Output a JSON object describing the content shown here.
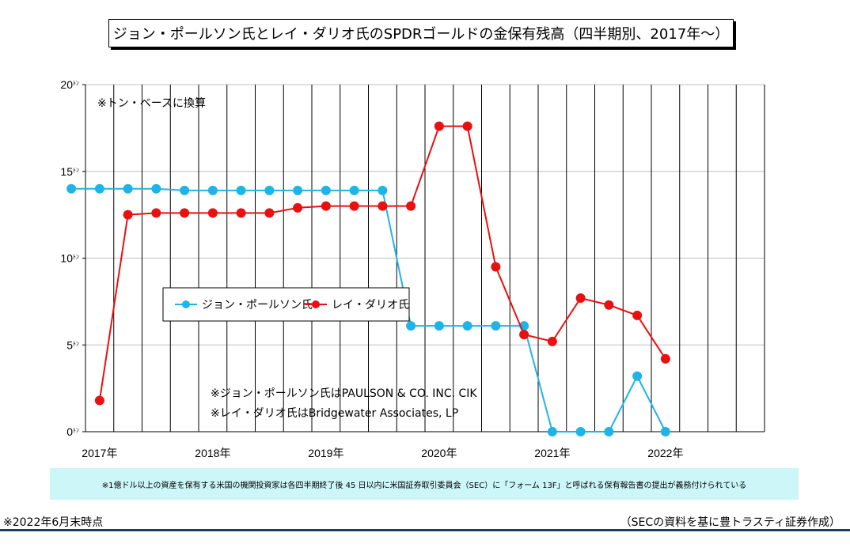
{
  "chart_data": {
    "type": "line",
    "title": "ジョン・ポールソン氏とレイ・ダリオ氏のSPDRゴールドの金保有残高（四半期別、2017年～）",
    "ylim": [
      0,
      20
    ],
    "yticks": [
      0,
      5,
      10,
      15,
      20
    ],
    "ytick_unit": "ﾄﾝ",
    "xlim": [
      0,
      24
    ],
    "year_labels": [
      {
        "label": "2017年",
        "x": 0
      },
      {
        "label": "2018年",
        "x": 4
      },
      {
        "label": "2019年",
        "x": 8
      },
      {
        "label": "2020年",
        "x": 12
      },
      {
        "label": "2021年",
        "x": 16
      },
      {
        "label": "2022年",
        "x": 20
      }
    ],
    "grid": true,
    "legend_position": "center-left",
    "series": [
      {
        "name": "ジョン・ポールソン氏",
        "color": "#1fb4e8",
        "points": [
          [
            -0.5,
            14.0
          ],
          [
            0.5,
            14.0
          ],
          [
            1.5,
            14.0
          ],
          [
            2.5,
            14.0
          ],
          [
            3.5,
            13.9
          ],
          [
            4.5,
            13.9
          ],
          [
            5.5,
            13.9
          ],
          [
            6.5,
            13.9
          ],
          [
            7.5,
            13.9
          ],
          [
            8.5,
            13.9
          ],
          [
            9.5,
            13.9
          ],
          [
            10.5,
            13.9
          ],
          [
            11.5,
            6.1
          ],
          [
            12.5,
            6.1
          ],
          [
            13.5,
            6.1
          ],
          [
            14.5,
            6.1
          ],
          [
            15.5,
            6.1
          ],
          [
            16.5,
            0.0
          ],
          [
            17.5,
            0.0
          ],
          [
            18.5,
            0.0
          ],
          [
            19.5,
            3.2
          ],
          [
            20.5,
            0.0
          ]
        ]
      },
      {
        "name": "レイ・ダリオ氏",
        "color": "#e81010",
        "points": [
          [
            0.5,
            1.8
          ],
          [
            1.5,
            12.5
          ],
          [
            2.5,
            12.6
          ],
          [
            3.5,
            12.6
          ],
          [
            4.5,
            12.6
          ],
          [
            5.5,
            12.6
          ],
          [
            6.5,
            12.6
          ],
          [
            7.5,
            12.9
          ],
          [
            8.5,
            13.0
          ],
          [
            9.5,
            13.0
          ],
          [
            10.5,
            13.0
          ],
          [
            11.5,
            13.0
          ],
          [
            12.5,
            17.6
          ],
          [
            13.5,
            17.6
          ],
          [
            14.5,
            9.5
          ],
          [
            15.5,
            5.6
          ],
          [
            16.5,
            5.2
          ],
          [
            17.5,
            7.7
          ],
          [
            18.5,
            7.3
          ],
          [
            19.5,
            6.7
          ],
          [
            20.5,
            4.2
          ]
        ]
      }
    ],
    "annotations": [
      "※トン・ベースに換算",
      "※ジョン・ポールソン氏はPAULSON & CO. INC. CIK",
      "※レイ・ダリオ氏はBridgewater Associates, LP"
    ]
  },
  "footnote": "※1億ドル以上の資産を保有する米国の機関投資家は各四半期終了後 45 日以内に米国証券取引委員会（SEC）に「フォーム 13F」と呼ばれる保有報告書の提出が義務付けられている",
  "as_of": "※2022年6月末時点",
  "source": "（SECの資料を基に豊トラスティ証券作成）"
}
